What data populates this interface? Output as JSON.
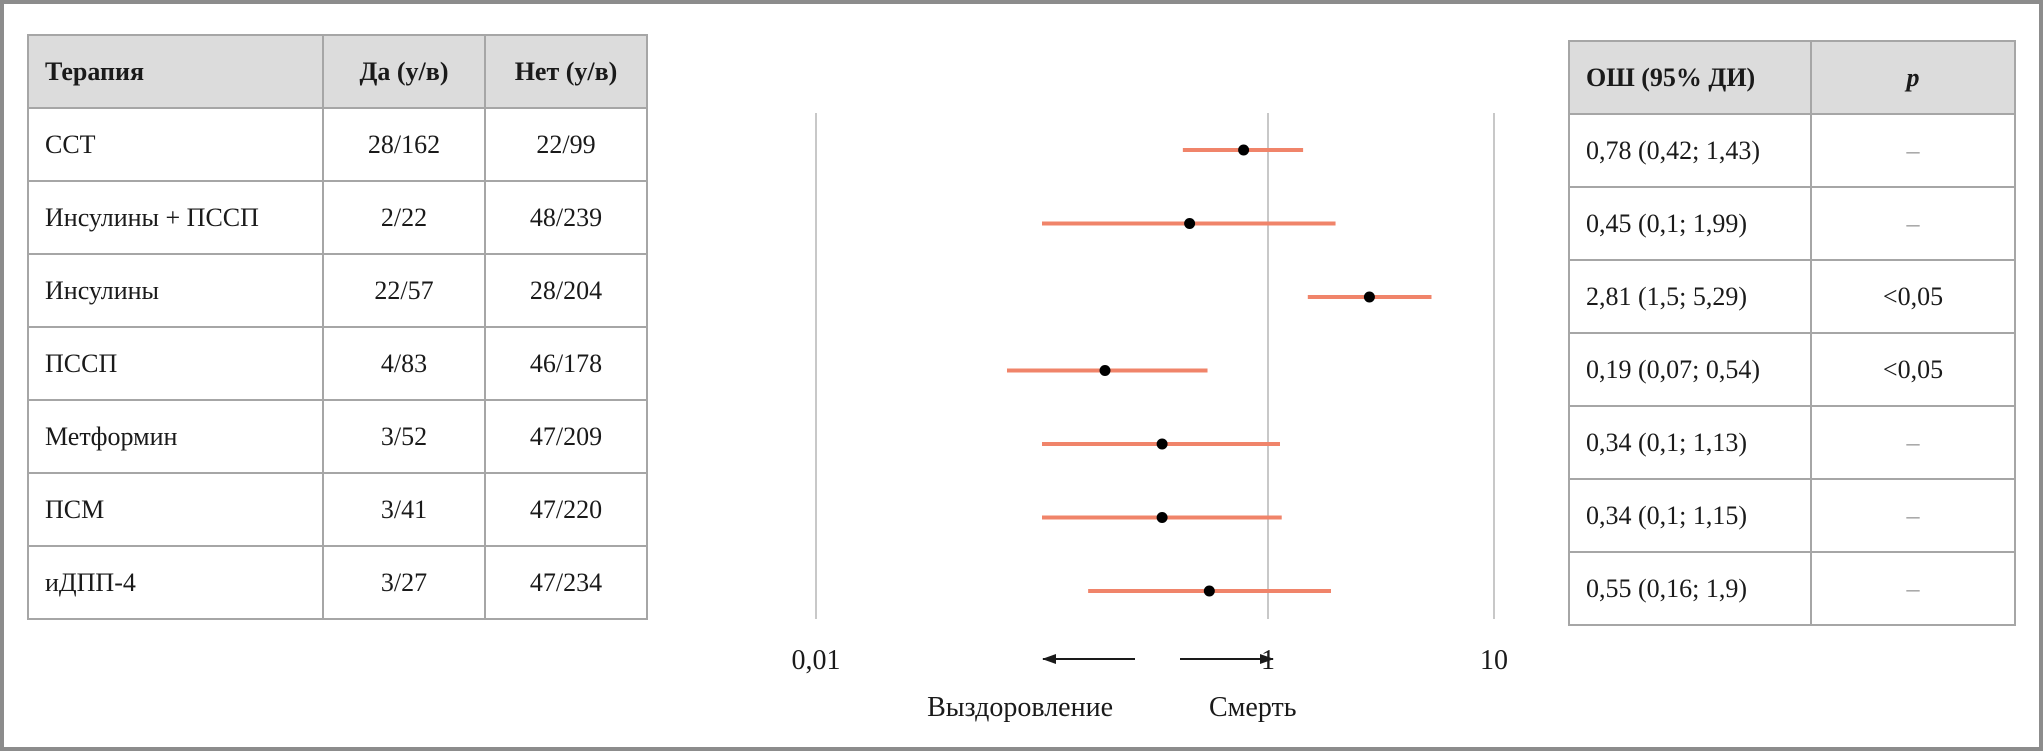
{
  "left_table": {
    "headers": [
      "Терапия",
      "Да (у/в)",
      "Нет (у/в)"
    ],
    "rows": [
      [
        "ССТ",
        "28/162",
        "22/99"
      ],
      [
        "Инсулины + ПССП",
        "2/22",
        "48/239"
      ],
      [
        "Инсулины",
        "22/57",
        "28/204"
      ],
      [
        "ПССП",
        "4/83",
        "46/178"
      ],
      [
        "Метформин",
        "3/52",
        "47/209"
      ],
      [
        "ПСМ",
        "3/41",
        "47/220"
      ],
      [
        "иДПП-4",
        "3/27",
        "47/234"
      ]
    ]
  },
  "right_table": {
    "headers": [
      "ОШ (95% ДИ)",
      "p"
    ],
    "rows": [
      [
        "0,78 (0,42; 1,43)",
        "–"
      ],
      [
        "0,45 (0,1; 1,99)",
        "–"
      ],
      [
        "2,81 (1,5; 5,29)",
        "<0,05"
      ],
      [
        "0,19 (0,07; 0,54)",
        "<0,05"
      ],
      [
        "0,34 (0,1; 1,13)",
        "–"
      ],
      [
        "0,34 (0,1; 1,15)",
        "–"
      ],
      [
        "0,55 (0,16; 1,9)",
        "–"
      ]
    ]
  },
  "chart_data": {
    "type": "scatter",
    "subtype": "forest-plot",
    "x_scale": "log",
    "xlim": [
      0.01,
      10
    ],
    "x_ticks": [
      {
        "value": 0.01,
        "label": "0,01"
      },
      {
        "value": 1,
        "label": "1"
      },
      {
        "value": 10,
        "label": "10"
      }
    ],
    "categories": [
      "ССТ",
      "Инсулины + ПССП",
      "Инсулины",
      "ПССП",
      "Метформин",
      "ПСМ",
      "иДПП-4"
    ],
    "or": [
      0.78,
      0.45,
      2.81,
      0.19,
      0.34,
      0.34,
      0.55
    ],
    "ci_low": [
      0.42,
      0.1,
      1.5,
      0.07,
      0.1,
      0.1,
      0.16
    ],
    "ci_high": [
      1.43,
      1.99,
      5.29,
      0.54,
      1.13,
      1.15,
      1.9
    ],
    "direction_labels": {
      "left": "Выздоровление",
      "right": "Смерть"
    },
    "grid": true,
    "colors": {
      "ci_line": "#f0846a",
      "point": "#000000",
      "grid": "#c8c8c8"
    }
  }
}
